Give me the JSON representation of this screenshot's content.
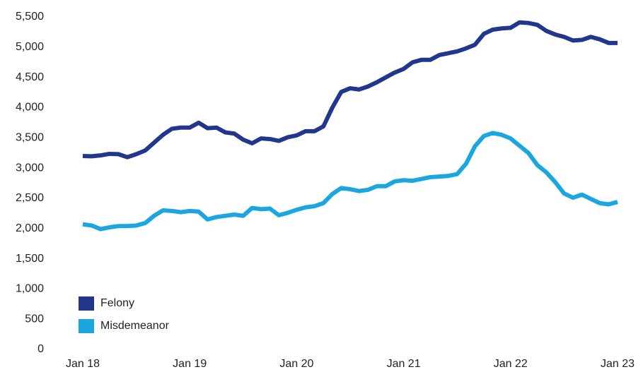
{
  "chart_data": {
    "type": "line",
    "categories": [
      "Jan 18",
      null,
      null,
      null,
      null,
      null,
      null,
      null,
      null,
      null,
      null,
      null,
      "Jan 19",
      null,
      null,
      null,
      null,
      null,
      null,
      null,
      null,
      null,
      null,
      null,
      "Jan 20",
      null,
      null,
      null,
      null,
      null,
      null,
      null,
      null,
      null,
      null,
      null,
      "Jan 21",
      null,
      null,
      null,
      null,
      null,
      null,
      null,
      null,
      null,
      null,
      null,
      "Jan 22",
      null,
      null,
      null,
      null,
      null,
      null,
      null,
      null,
      null,
      null,
      null,
      "Jan 23"
    ],
    "series": [
      {
        "name": "Felony",
        "color": "#22368c",
        "values": [
          3200,
          3195,
          3210,
          3235,
          3230,
          3180,
          3230,
          3290,
          3420,
          3550,
          3650,
          3670,
          3670,
          3750,
          3660,
          3670,
          3590,
          3570,
          3470,
          3410,
          3490,
          3480,
          3450,
          3510,
          3540,
          3610,
          3610,
          3690,
          4000,
          4260,
          4320,
          4300,
          4350,
          4420,
          4500,
          4580,
          4640,
          4750,
          4790,
          4790,
          4870,
          4900,
          4930,
          4980,
          5040,
          5220,
          5290,
          5310,
          5320,
          5410,
          5400,
          5370,
          5270,
          5210,
          5170,
          5110,
          5120,
          5170,
          5130,
          5070,
          5070
        ]
      },
      {
        "name": "Misdemeanor",
        "color": "#1ba6df",
        "values": [
          2070,
          2050,
          1990,
          2020,
          2040,
          2040,
          2050,
          2090,
          2210,
          2300,
          2290,
          2270,
          2290,
          2280,
          2150,
          2190,
          2210,
          2230,
          2210,
          2340,
          2320,
          2330,
          2220,
          2260,
          2310,
          2350,
          2370,
          2420,
          2570,
          2670,
          2650,
          2620,
          2640,
          2700,
          2700,
          2780,
          2800,
          2790,
          2820,
          2850,
          2860,
          2870,
          2900,
          3070,
          3360,
          3530,
          3580,
          3550,
          3490,
          3370,
          3250,
          3050,
          2930,
          2770,
          2580,
          2510,
          2560,
          2490,
          2420,
          2400,
          2440
        ]
      }
    ],
    "ylim": [
      0,
      5500
    ],
    "yticks": [
      0,
      500,
      {
        "value": 1000,
        "label": "1,000"
      },
      {
        "value": 1500,
        "label": "1,500"
      },
      {
        "value": 2000,
        "label": "2,000"
      },
      {
        "value": 2500,
        "label": "2,500"
      },
      {
        "value": 3000,
        "label": "3,000"
      },
      {
        "value": 3500,
        "label": "3,500"
      },
      {
        "value": 4000,
        "label": "4,000"
      },
      {
        "value": 4500,
        "label": "4,500"
      },
      {
        "value": 5000,
        "label": "5,000"
      },
      {
        "value": 5500,
        "label": "5,500"
      }
    ],
    "grid": false,
    "legend": "lower left"
  }
}
